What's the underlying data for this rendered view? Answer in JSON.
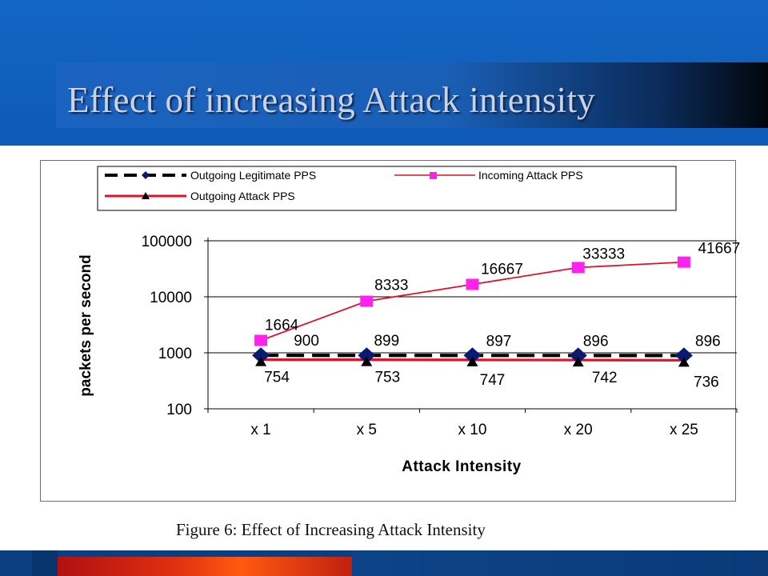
{
  "slide": {
    "title": "Effect of increasing Attack intensity",
    "caption": "Figure 6: Effect of Increasing Attack Intensity"
  },
  "colors": {
    "header_blue": "#1466c4",
    "legit": "#000000",
    "legit_marker": "#0a1a6e",
    "incoming": "#e0102a",
    "incoming_marker": "#ff22ee",
    "outgoing_attack": "#e0102a",
    "outgoing_marker": "#000000"
  },
  "chart_data": {
    "type": "line",
    "title": "",
    "xlabel": "Attack Intensity",
    "ylabel": "packets per second",
    "yscale": "log",
    "ylim": [
      100,
      100000
    ],
    "yticks": [
      "100",
      "1000",
      "10000",
      "100000"
    ],
    "categories": [
      "x 1",
      "x 5",
      "x 10",
      "x 20",
      "x 25"
    ],
    "grid": "horizontal major gridlines",
    "legend_position": "top",
    "series": [
      {
        "name": "Outgoing Legitimate PPS",
        "values": [
          900,
          899,
          897,
          896,
          896
        ],
        "labels": [
          "900",
          "899",
          "897",
          "896",
          "896"
        ]
      },
      {
        "name": "Incoming Attack PPS",
        "values": [
          1664,
          8333,
          16667,
          33333,
          41667
        ],
        "labels": [
          "1664",
          "8333",
          "16667",
          "33333",
          "41667"
        ]
      },
      {
        "name": "Outgoing Attack PPS",
        "values": [
          754,
          753,
          747,
          742,
          736
        ],
        "labels": [
          "754",
          "753",
          "747",
          "742",
          "736"
        ]
      }
    ]
  }
}
